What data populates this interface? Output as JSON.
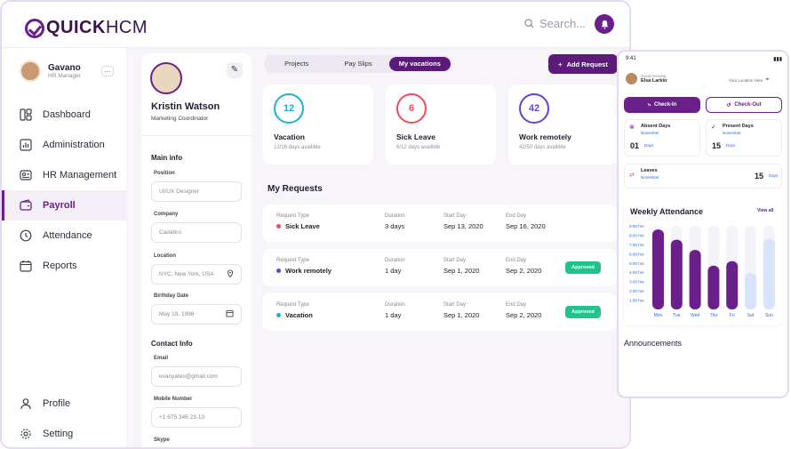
{
  "app": {
    "logo_bold": "QUICK",
    "logo_light": "HCM"
  },
  "search": {
    "placeholder": "Search..."
  },
  "user": {
    "name": "Gavano",
    "role": "HR Manager",
    "menu": "..."
  },
  "nav": {
    "items": [
      {
        "label": "Dashboard",
        "icon": "dashboard-icon"
      },
      {
        "label": "Administration",
        "icon": "chart-icon"
      },
      {
        "label": "HR Management",
        "icon": "id-card-icon"
      },
      {
        "label": "Payroll",
        "icon": "wallet-icon",
        "active": true
      },
      {
        "label": "Attendance",
        "icon": "clock-icon"
      },
      {
        "label": "Reports",
        "icon": "calendar-icon"
      }
    ],
    "bottom": [
      {
        "label": "Profile",
        "icon": "user-icon"
      },
      {
        "label": "Setting",
        "icon": "gear-icon"
      }
    ]
  },
  "profile": {
    "name": "Kristin Watson",
    "role": "Marketing Coordinator",
    "main_info": "Main info",
    "position_label": "Position",
    "position": "UI/UX Designer",
    "company_label": "Company",
    "company": "Cadabro",
    "location_label": "Location",
    "location": "NYC, New York, USA",
    "birthday_label": "Birthday Date",
    "birthday": "May 19, 1996",
    "contact_info": "Contact Info",
    "email_label": "Email",
    "email": "evanyates@gmail.com",
    "mobile_label": "Mobile Number",
    "mobile": "+1 675 346 23-10",
    "skype_label": "Skype"
  },
  "tabs": [
    "Projects",
    "Pay Slips",
    "My vacations"
  ],
  "add_request": "Add Request",
  "stats": [
    {
      "value": "12",
      "title": "Vacation",
      "sub": "12/16 days availible",
      "color": "#1ab3d6"
    },
    {
      "value": "6",
      "title": "Sick Leave",
      "sub": "6/12 days availible",
      "color": "#ef4b5b"
    },
    {
      "value": "42",
      "title": "Work remotely",
      "sub": "42/50 days availible",
      "color": "#6a3fd6"
    }
  ],
  "requests_title": "My Requests",
  "request_headers": {
    "type": "Request Type",
    "duration": "Duration",
    "start": "Start Day",
    "end": "End Day"
  },
  "requests": [
    {
      "type": "Sick Leave",
      "duration": "3 days",
      "start": "Sep 13, 2020",
      "end": "Sep 16, 2020",
      "status": "",
      "color": "#ef4b5b"
    },
    {
      "type": "Work remotely",
      "duration": "1 day",
      "start": "Sep 1, 2020",
      "end": "Sep 2, 2020",
      "status": "Approved",
      "color": "#6a3fd6"
    },
    {
      "type": "Vacation",
      "duration": "1 day",
      "start": "Sep 1, 2020",
      "end": "Sep 2, 2020",
      "status": "Approved",
      "color": "#1ab3d6"
    }
  ],
  "phone": {
    "time": "9:41",
    "greeting": "Good morning",
    "name": "Elsa Larkin",
    "location": "Your Location Here",
    "checkin": "Check-In",
    "checkout": "Check-Out",
    "absent_title": "Absent Days",
    "absent_month": "November",
    "absent_value": "01",
    "absent_unit": "Days",
    "present_title": "Present Days",
    "present_month": "November",
    "present_value": "15",
    "present_unit": "Days",
    "leaves_title": "Leaves",
    "leaves_month": "November",
    "leaves_value": "15",
    "leaves_unit": "Days",
    "weekly_title": "Weekly Attendance",
    "view_all": "View all",
    "announcements": "Announcements"
  },
  "chart_data": {
    "type": "bar",
    "title": "Weekly Attendance",
    "categories": [
      "Mon",
      "Tue",
      "Wed",
      "Thu",
      "Fri",
      "Sat",
      "Sun"
    ],
    "y_ticks": [
      "9:00 hrs",
      "8:00 hrs",
      "7:00 hrs",
      "6:00 hrs",
      "5:00 hrs",
      "4:00 hrs",
      "3:00 hrs",
      "2:00 hrs",
      "1:00 hrs"
    ],
    "values": [
      8.6,
      7.5,
      6.4,
      4.7,
      5.2,
      3.9,
      7.6
    ],
    "ylim": [
      0,
      9
    ],
    "colors": [
      "#6b1f8a",
      "#6b1f8a",
      "#6b1f8a",
      "#6b1f8a",
      "#6b1f8a",
      "#d8e4fb",
      "#d8e4fb"
    ]
  }
}
